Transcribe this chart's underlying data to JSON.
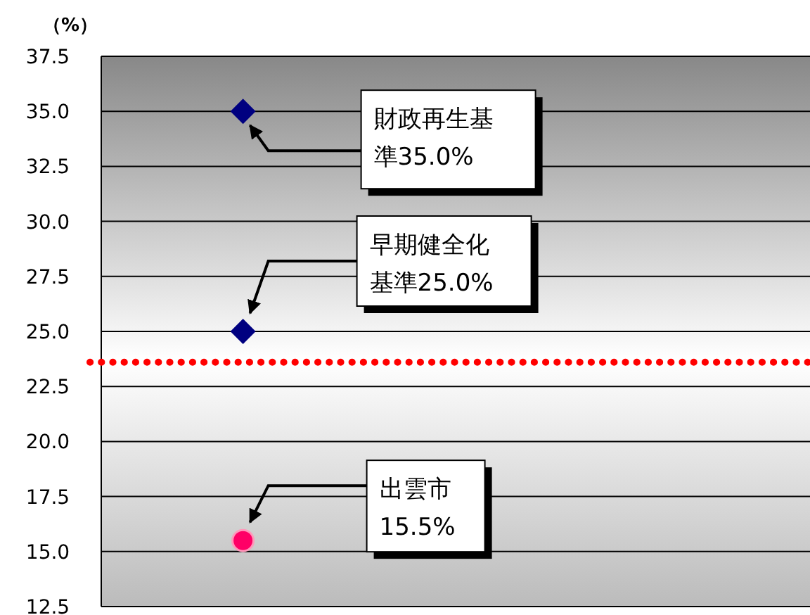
{
  "chart_data": {
    "type": "scatter",
    "ylabel": "（%）",
    "categories": [
      null
    ],
    "series": [
      {
        "values": [
          35.0
        ],
        "color": "#000080",
        "marker": "diamond"
      },
      {
        "values": [
          25.0
        ],
        "color": "#000080",
        "marker": "diamond"
      },
      {
        "values": [
          15.5
        ],
        "color": "#ff0066",
        "marker": "circle"
      }
    ],
    "ylim": [
      12.5,
      37.5
    ],
    "yticks": [
      {
        "value": 12.5,
        "label": "12.5"
      },
      {
        "value": 15,
        "label": "15.0"
      },
      {
        "value": 17.5,
        "label": "17.5"
      },
      {
        "value": 20,
        "label": "20.0"
      },
      {
        "value": 22.5,
        "label": "22.5"
      },
      {
        "value": 25,
        "label": "25.0"
      },
      {
        "value": 27.5,
        "label": "27.5"
      },
      {
        "value": 30,
        "label": "30.0"
      },
      {
        "value": 32.5,
        "label": "32.5"
      },
      {
        "value": 35,
        "label": "35.0"
      },
      {
        "value": 37.5,
        "label": "37.5"
      }
    ],
    "grid": "y",
    "tick_labels": "y",
    "ref_lines": [
      {
        "axis": "y",
        "value": 23.6,
        "color": "#ff0000",
        "line_style": "dotted"
      }
    ],
    "annotations": [
      "財政再生基準35.0%",
      "早期健全化基準25.0%",
      "出雲市15.5%"
    ]
  }
}
